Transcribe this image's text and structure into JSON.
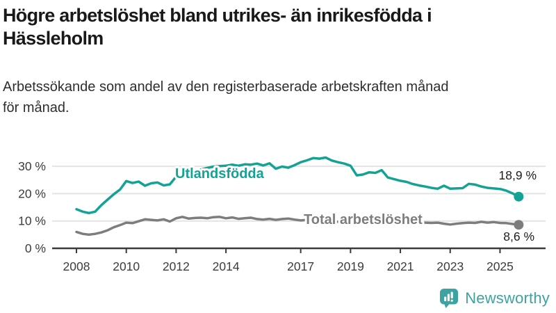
{
  "header": {
    "title": "Högre arbetslöshet bland utrikes- än inrikesfödda i Hässleholm",
    "title_lines": [
      "Högre arbetslöshet bland utrikes- än inrikesfödda i",
      "Hässleholm"
    ],
    "subtitle": "Arbetssökande som andel av den registerbaserade arbetskraften månad för månad.",
    "subtitle_lines": [
      "Arbetssökande som andel av den registerbaserade arbetskraften månad",
      "för månad."
    ]
  },
  "footer": {
    "brand": "Newsworthy",
    "logo_icon": "bar-chart-speech-bubble-icon",
    "brand_color": "#3da3a0"
  },
  "colors": {
    "background": "#ffffff",
    "grid": "#e3e3e3",
    "axis": "#3a3a3a",
    "tick_text": "#3c3c3c",
    "annotation_text": "#1c1c1c",
    "series_foreign_born": "#13a294",
    "series_total": "#7d7d7d"
  },
  "chart_data": {
    "type": "line",
    "title": "Högre arbetslöshet bland utrikes- än inrikesfödda i Hässleholm",
    "subtitle": "Arbetssökande som andel av den registerbaserade arbetskraften månad för månad.",
    "xlabel": "",
    "ylabel": "",
    "grid": "horizontal",
    "legend": "inline-labels",
    "x_ticks": [
      2008,
      2010,
      2012,
      2014,
      2017,
      2019,
      2021,
      2023,
      2025
    ],
    "y_ticks": [
      0,
      10,
      20,
      30
    ],
    "y_tick_suffix": " %",
    "xlim": [
      2007.0,
      2026.9
    ],
    "ylim": [
      0,
      37
    ],
    "x_start": 2008.0,
    "x_step": 0.25,
    "series": [
      {
        "name": "Utlandsfödda",
        "color": "#13a294",
        "end_label": "18,9 %",
        "values": [
          14.3,
          13.4,
          12.9,
          13.4,
          15.8,
          17.8,
          19.8,
          21.5,
          24.6,
          23.9,
          24.4,
          22.9,
          23.8,
          24.1,
          23.0,
          23.4,
          26.2,
          26.6,
          27.4,
          28.0,
          28.8,
          29.4,
          29.9,
          30.1,
          30.2,
          30.6,
          30.2,
          30.7,
          30.6,
          31.0,
          30.3,
          31.1,
          29.1,
          29.9,
          29.5,
          30.4,
          31.5,
          32.2,
          33.0,
          32.8,
          33.2,
          32.1,
          31.5,
          31.0,
          30.2,
          26.7,
          27.0,
          27.8,
          27.6,
          28.6,
          25.9,
          25.3,
          24.7,
          24.3,
          23.5,
          23.0,
          22.6,
          22.1,
          21.8,
          22.9,
          21.8,
          21.9,
          22.0,
          23.6,
          23.3,
          22.6,
          22.1,
          21.9,
          21.7,
          21.1,
          20.1,
          18.9
        ]
      },
      {
        "name": "Total arbetslöshet",
        "color": "#7d7d7d",
        "end_label": "8,6 %",
        "values": [
          6.0,
          5.3,
          5.0,
          5.3,
          5.8,
          6.6,
          7.7,
          8.5,
          9.4,
          9.2,
          9.9,
          10.6,
          10.4,
          10.2,
          10.6,
          9.8,
          11.0,
          11.5,
          10.9,
          11.1,
          11.2,
          11.0,
          11.4,
          11.5,
          11.0,
          11.3,
          10.8,
          11.0,
          11.2,
          10.7,
          10.5,
          10.8,
          10.4,
          10.7,
          10.9,
          10.5,
          10.2,
          10.4,
          10.1,
          10.0,
          9.9,
          9.8,
          9.7,
          9.5,
          9.4,
          9.3,
          9.3,
          9.4,
          9.6,
          10.0,
          9.9,
          9.8,
          9.7,
          9.6,
          9.5,
          9.4,
          9.4,
          9.3,
          9.4,
          9.0,
          8.7,
          9.0,
          9.2,
          9.4,
          9.3,
          9.7,
          9.4,
          9.6,
          9.3,
          9.2,
          8.9,
          8.6
        ]
      }
    ]
  }
}
